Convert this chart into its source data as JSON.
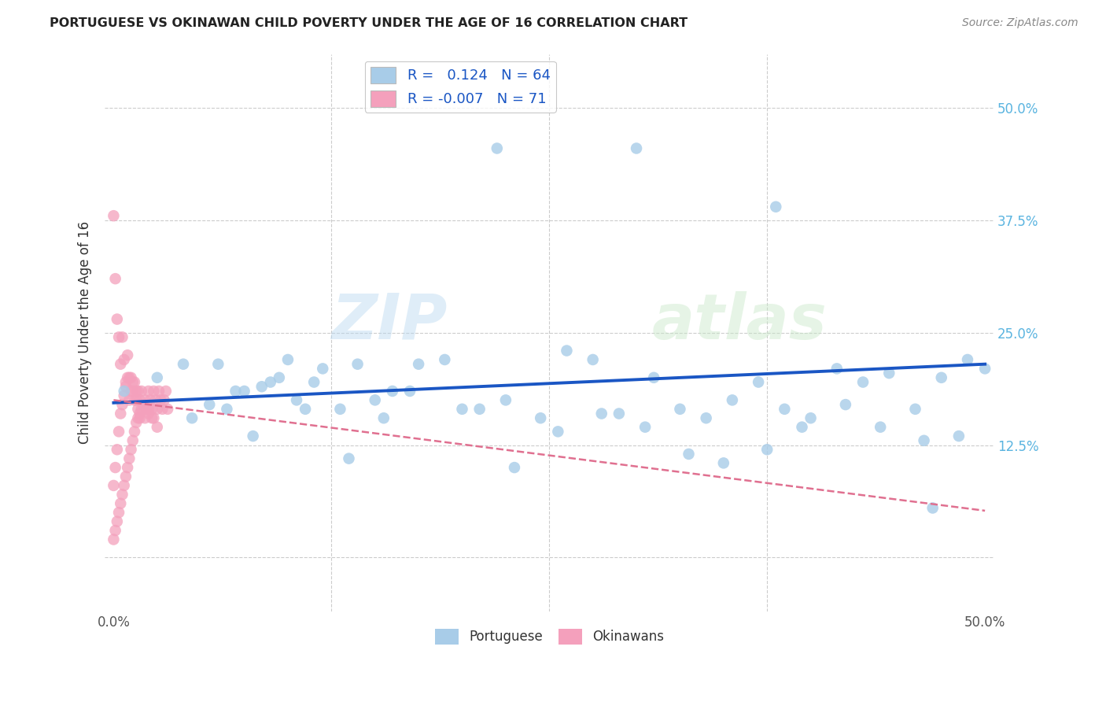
{
  "title": "PORTUGUESE VS OKINAWAN CHILD POVERTY UNDER THE AGE OF 16 CORRELATION CHART",
  "source": "Source: ZipAtlas.com",
  "ylabel": "Child Poverty Under the Age of 16",
  "xlim": [
    -0.005,
    0.505
  ],
  "ylim": [
    -0.06,
    0.56
  ],
  "portuguese_color": "#a8cce8",
  "okinawan_color": "#f4a0bc",
  "portuguese_R": 0.124,
  "portuguese_N": 64,
  "okinawan_R": -0.007,
  "okinawan_N": 71,
  "trend_blue_color": "#1a56c4",
  "trend_pink_color": "#e07090",
  "watermark_zip": "ZIP",
  "watermark_atlas": "atlas",
  "portuguese_x": [
    0.006,
    0.025,
    0.04,
    0.06,
    0.075,
    0.09,
    0.1,
    0.115,
    0.13,
    0.15,
    0.055,
    0.07,
    0.085,
    0.095,
    0.105,
    0.12,
    0.14,
    0.16,
    0.175,
    0.19,
    0.21,
    0.225,
    0.245,
    0.26,
    0.275,
    0.29,
    0.31,
    0.325,
    0.34,
    0.355,
    0.37,
    0.385,
    0.4,
    0.415,
    0.43,
    0.445,
    0.46,
    0.475,
    0.49,
    0.5,
    0.045,
    0.065,
    0.08,
    0.11,
    0.135,
    0.155,
    0.17,
    0.2,
    0.23,
    0.255,
    0.28,
    0.305,
    0.33,
    0.35,
    0.375,
    0.395,
    0.42,
    0.44,
    0.465,
    0.485,
    0.22,
    0.3,
    0.38,
    0.47
  ],
  "portuguese_y": [
    0.185,
    0.2,
    0.215,
    0.215,
    0.185,
    0.195,
    0.22,
    0.195,
    0.165,
    0.175,
    0.17,
    0.185,
    0.19,
    0.2,
    0.175,
    0.21,
    0.215,
    0.185,
    0.215,
    0.22,
    0.165,
    0.175,
    0.155,
    0.23,
    0.22,
    0.16,
    0.2,
    0.165,
    0.155,
    0.175,
    0.195,
    0.165,
    0.155,
    0.21,
    0.195,
    0.205,
    0.165,
    0.2,
    0.22,
    0.21,
    0.155,
    0.165,
    0.135,
    0.165,
    0.11,
    0.155,
    0.185,
    0.165,
    0.1,
    0.14,
    0.16,
    0.145,
    0.115,
    0.105,
    0.12,
    0.145,
    0.17,
    0.145,
    0.13,
    0.135,
    0.455,
    0.455,
    0.39,
    0.055
  ],
  "okinawan_x": [
    0.0,
    0.0,
    0.001,
    0.001,
    0.002,
    0.002,
    0.003,
    0.003,
    0.004,
    0.004,
    0.005,
    0.005,
    0.006,
    0.006,
    0.007,
    0.007,
    0.008,
    0.008,
    0.009,
    0.009,
    0.01,
    0.01,
    0.011,
    0.011,
    0.012,
    0.012,
    0.013,
    0.013,
    0.014,
    0.014,
    0.015,
    0.015,
    0.016,
    0.016,
    0.017,
    0.018,
    0.019,
    0.02,
    0.02,
    0.021,
    0.022,
    0.023,
    0.024,
    0.025,
    0.026,
    0.027,
    0.028,
    0.029,
    0.03,
    0.031,
    0.0,
    0.001,
    0.002,
    0.003,
    0.004,
    0.005,
    0.006,
    0.007,
    0.008,
    0.009,
    0.01,
    0.011,
    0.012,
    0.013,
    0.014,
    0.02,
    0.022,
    0.025,
    0.015,
    0.018,
    0.023
  ],
  "okinawan_y": [
    0.02,
    0.08,
    0.03,
    0.1,
    0.04,
    0.12,
    0.05,
    0.14,
    0.06,
    0.16,
    0.07,
    0.17,
    0.08,
    0.18,
    0.09,
    0.19,
    0.1,
    0.2,
    0.11,
    0.175,
    0.12,
    0.185,
    0.13,
    0.195,
    0.14,
    0.175,
    0.15,
    0.185,
    0.155,
    0.165,
    0.16,
    0.175,
    0.165,
    0.185,
    0.17,
    0.175,
    0.165,
    0.185,
    0.16,
    0.175,
    0.165,
    0.185,
    0.175,
    0.165,
    0.185,
    0.175,
    0.165,
    0.175,
    0.185,
    0.165,
    0.38,
    0.31,
    0.265,
    0.245,
    0.215,
    0.245,
    0.22,
    0.195,
    0.225,
    0.2,
    0.2,
    0.185,
    0.195,
    0.175,
    0.185,
    0.165,
    0.155,
    0.145,
    0.155,
    0.155,
    0.155
  ],
  "blue_trend_x": [
    0.0,
    0.5
  ],
  "blue_trend_y": [
    0.172,
    0.215
  ],
  "pink_trend_x": [
    0.0,
    0.5
  ],
  "pink_trend_y": [
    0.175,
    0.052
  ]
}
